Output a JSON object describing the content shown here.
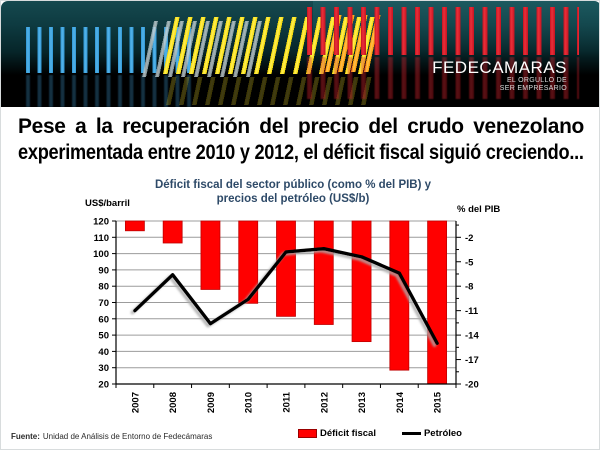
{
  "banner": {
    "logo": "FEDECAMARAS",
    "tagline1": "EL ORGULLO DE",
    "tagline2": "SER EMPRESARIO"
  },
  "headline": {
    "line1": "Pese a la recuperación del precio del crudo venezolano",
    "line2": "experimentada entre 2010 y 2012, el déficit fiscal siguió creciendo..."
  },
  "source": {
    "label": "Fuente:",
    "text": "Unidad de Análisis de Entorno de Fedecámaras"
  },
  "chart_data": {
    "type": "combo-bar-line",
    "title_line1": "Déficit fiscal del sector público (como % del PIB) y",
    "title_line2": "precios del petróleo (US$/b)",
    "title_color": "#2E4A68",
    "grid": true,
    "grid_color": "#9C9C9C",
    "legend_position": "bottom",
    "categories": [
      "2007",
      "2008",
      "2009",
      "2010",
      "2011",
      "2012",
      "2013",
      "2014",
      "2015"
    ],
    "left_axis": {
      "label": "US$/barril",
      "min": 20,
      "max": 120,
      "ticks": [
        120,
        110,
        100,
        90,
        80,
        70,
        60,
        50,
        40,
        30,
        20
      ]
    },
    "right_axis": {
      "label": "% del PIB",
      "min": -20,
      "max": 0,
      "ticks": [
        -2,
        -5,
        -8,
        -11,
        -14,
        -17,
        -20
      ]
    },
    "series": [
      {
        "name": "Déficit fiscal",
        "type": "bar",
        "axis": "right",
        "color": "#FF0000",
        "border_color": "#C00000",
        "values": [
          -1.2,
          -2.7,
          -8.4,
          -10.1,
          -11.7,
          -12.7,
          -14.8,
          -18.3,
          -20.0
        ]
      },
      {
        "name": "Petróleo",
        "type": "line",
        "axis": "left",
        "color": "#000000",
        "values": [
          65,
          87,
          57,
          72,
          101,
          103,
          98,
          88,
          45
        ]
      }
    ]
  }
}
